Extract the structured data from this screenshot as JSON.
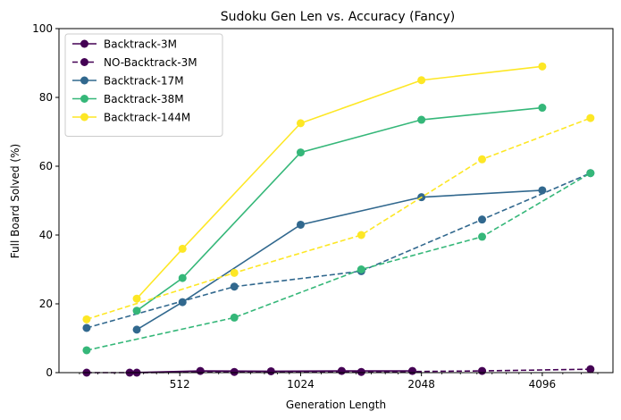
{
  "chart_data": {
    "type": "line",
    "title": "Sudoku Gen Len vs. Accuracy (Fancy)",
    "xlabel": "Generation Length",
    "ylabel": "Full Board Solved (%)",
    "x_scale": "log2",
    "xlim": [
      256,
      6144
    ],
    "ylim": [
      0,
      100
    ],
    "x_ticks": [
      512,
      1024,
      2048,
      4096
    ],
    "x_tick_labels": [
      "512",
      "1024",
      "2048",
      "4096"
    ],
    "y_ticks": [
      0,
      20,
      40,
      60,
      80,
      100
    ],
    "y_tick_labels": [
      "0",
      "20",
      "40",
      "60",
      "80",
      "100"
    ],
    "grid": false,
    "legend_position": "top-left",
    "series": [
      {
        "name": "Backtrack-3M",
        "color": "#440154",
        "dash": "solid",
        "x": [
          384,
          576,
          864,
          1296,
          1944
        ],
        "y": [
          0.0,
          0.5,
          0.4,
          0.5,
          0.5
        ]
      },
      {
        "name": "NO-Backtrack-3M",
        "color": "#440154",
        "dash": "dashed",
        "x": [
          300,
          400,
          700,
          1450,
          2900,
          5400
        ],
        "y": [
          0.0,
          0.0,
          0.2,
          0.2,
          0.5,
          1.0
        ]
      },
      {
        "name": "Backtrack-17M",
        "color": "#31688e",
        "dash": "solid",
        "x": [
          400,
          520,
          1024,
          2048,
          4096
        ],
        "y": [
          12.5,
          20.5,
          43.0,
          51.0,
          53.0
        ]
      },
      {
        "name": "NO-Backtrack-17M",
        "color": "#31688e",
        "dash": "dashed",
        "x": [
          300,
          700,
          1450,
          2900,
          5400
        ],
        "y": [
          13.0,
          25.0,
          29.5,
          44.5,
          58.0
        ]
      },
      {
        "name": "Backtrack-38M",
        "color": "#35b779",
        "dash": "solid",
        "x": [
          400,
          520,
          1024,
          2048,
          4096
        ],
        "y": [
          18.0,
          27.5,
          64.0,
          73.5,
          77.0
        ]
      },
      {
        "name": "NO-Backtrack-38M",
        "color": "#35b779",
        "dash": "dashed",
        "x": [
          300,
          700,
          1450,
          2900,
          5400
        ],
        "y": [
          6.5,
          16.0,
          30.0,
          39.5,
          58.0
        ]
      },
      {
        "name": "Backtrack-144M",
        "color": "#fde725",
        "dash": "solid",
        "x": [
          400,
          520,
          1024,
          2048,
          4096
        ],
        "y": [
          21.5,
          36.0,
          72.5,
          85.0,
          89.0
        ]
      },
      {
        "name": "NO-Backtrack-144M",
        "color": "#fde725",
        "dash": "dashed",
        "x": [
          300,
          700,
          1450,
          2900,
          5400
        ],
        "y": [
          15.5,
          29.0,
          40.0,
          62.0,
          74.0
        ]
      }
    ],
    "legend_entries": [
      {
        "label": "Backtrack-3M",
        "color": "#440154",
        "dash": "solid"
      },
      {
        "label": "NO-Backtrack-3M",
        "color": "#440154",
        "dash": "dashed"
      },
      {
        "label": "Backtrack-17M",
        "color": "#31688e",
        "dash": "solid"
      },
      {
        "label": "Backtrack-38M",
        "color": "#35b779",
        "dash": "solid"
      },
      {
        "label": "Backtrack-144M",
        "color": "#fde725",
        "dash": "solid"
      }
    ]
  }
}
